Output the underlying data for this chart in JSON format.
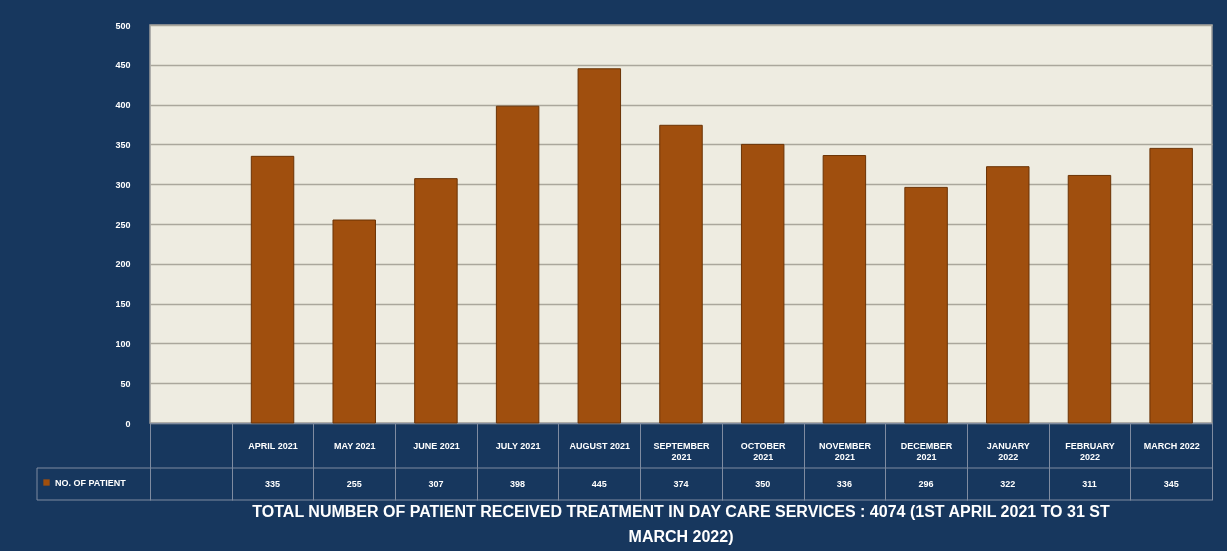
{
  "chart_data": {
    "type": "bar",
    "title": "TOTAL NUMBER OF PATIENT RECEIVED TREATMENT IN DAY CARE SERVICES : 4074 (1ST APRIL 2021 TO 31 ST MARCH 2022)",
    "categories": [
      null,
      "APRIL 2021",
      "MAY 2021",
      "JUNE 2021",
      "JULY 2021",
      "AUGUST 2021",
      "SEPTEMBER 2021",
      "OCTOBER 2021",
      "NOVEMBER 2021",
      "DECEMBER 2021",
      "JANUARY 2022",
      "FEBRUARY 2022",
      "MARCH 2022"
    ],
    "series": [
      {
        "name": "NO. OF PATIENT",
        "color": "#a04f0e",
        "values": [
          null,
          335,
          255,
          307,
          398,
          445,
          374,
          350,
          336,
          296,
          322,
          311,
          345
        ]
      }
    ],
    "ylim": [
      0,
      500
    ],
    "yticks": [
      0,
      50,
      100,
      150,
      200,
      250,
      300,
      350,
      400,
      450,
      500
    ],
    "grid": "y",
    "legend": "bottom left",
    "data_labels": true
  }
}
